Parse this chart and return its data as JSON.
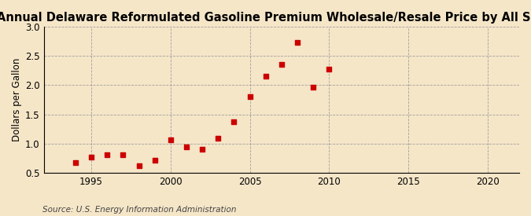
{
  "title": "Annual Delaware Reformulated Gasoline Premium Wholesale/Resale Price by All Sellers",
  "ylabel": "Dollars per Gallon",
  "source": "Source: U.S. Energy Information Administration",
  "years": [
    1994,
    1995,
    1996,
    1997,
    1998,
    1999,
    2000,
    2001,
    2002,
    2003,
    2004,
    2005,
    2006,
    2007,
    2008,
    2009,
    2010
  ],
  "values": [
    0.67,
    0.77,
    0.81,
    0.81,
    0.62,
    0.72,
    1.06,
    0.94,
    0.9,
    1.09,
    1.38,
    1.8,
    2.16,
    2.35,
    2.73,
    1.97,
    2.28
  ],
  "marker_color": "#cc0000",
  "bg_color": "#f5e6c8",
  "grid_color": "#999999",
  "xlim": [
    1992,
    2022
  ],
  "ylim": [
    0.5,
    3.0
  ],
  "xticks": [
    1995,
    2000,
    2005,
    2010,
    2015,
    2020
  ],
  "yticks": [
    0.5,
    1.0,
    1.5,
    2.0,
    2.5,
    3.0
  ],
  "title_fontsize": 10.5,
  "label_fontsize": 8.5,
  "source_fontsize": 7.5,
  "tick_fontsize": 8.5
}
